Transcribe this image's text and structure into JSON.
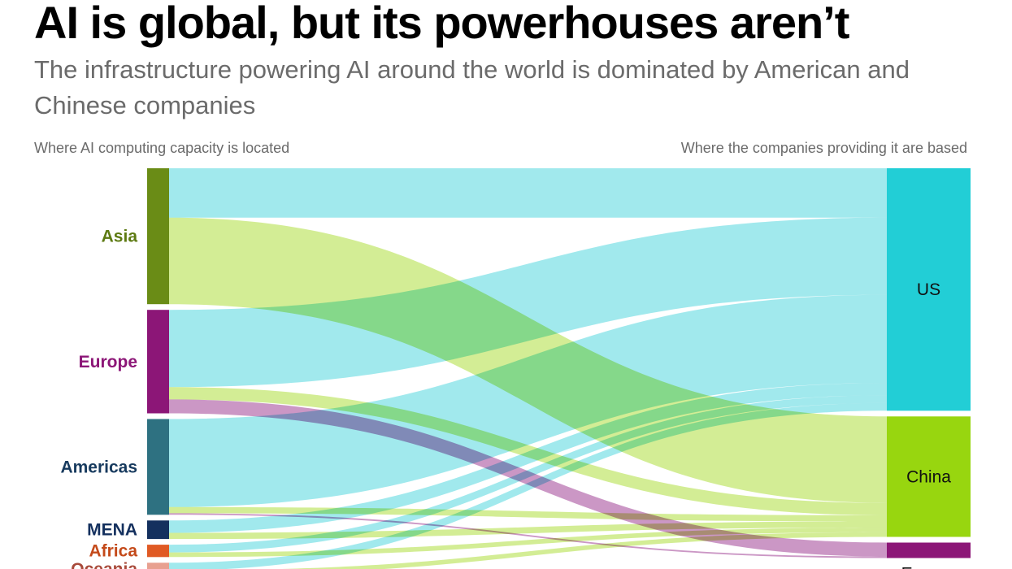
{
  "title": "AI is global, but its powerhouses aren’t",
  "subtitle": "The infrastructure powering AI around the world is dominated by American and Chinese companies",
  "left_axis_label": "Where AI computing capacity is located",
  "right_axis_label": "Where the companies providing it are based",
  "chart_data": {
    "type": "sankey",
    "sources": [
      {
        "name": "Asia",
        "color": "#6a8c16",
        "label_color": "#5d7a12"
      },
      {
        "name": "Europe",
        "color": "#8c1677",
        "label_color": "#8c1677"
      },
      {
        "name": "Americas",
        "color": "#2e7181",
        "label_color": "#173a5e"
      },
      {
        "name": "MENA",
        "color": "#14305e",
        "label_color": "#14305e"
      },
      {
        "name": "Africa",
        "color": "#e05a24",
        "label_color": "#c44a1a"
      },
      {
        "name": "Oceania",
        "color": "#e8a090",
        "label_color": "#a84a3a"
      }
    ],
    "targets": [
      {
        "name": "US",
        "color": "#22ced6",
        "link_color": "#86e3e8"
      },
      {
        "name": "China",
        "color": "#98d60f",
        "link_color": "#c6e877"
      },
      {
        "name": "Europe",
        "color": "#8c1677",
        "link_color": "#bd7ab5"
      }
    ],
    "flows": [
      {
        "source": "Asia",
        "target": "US",
        "value": 32
      },
      {
        "source": "Asia",
        "target": "China",
        "value": 56
      },
      {
        "source": "Europe",
        "target": "US",
        "value": 50
      },
      {
        "source": "Europe",
        "target": "China",
        "value": 8
      },
      {
        "source": "Europe",
        "target": "Europe",
        "value": 9
      },
      {
        "source": "Americas",
        "target": "US",
        "value": 57
      },
      {
        "source": "Americas",
        "target": "China",
        "value": 4
      },
      {
        "source": "Americas",
        "target": "Europe",
        "value": 1
      },
      {
        "source": "MENA",
        "target": "US",
        "value": 8
      },
      {
        "source": "MENA",
        "target": "China",
        "value": 4
      },
      {
        "source": "Africa",
        "target": "US",
        "value": 5
      },
      {
        "source": "Africa",
        "target": "China",
        "value": 3
      },
      {
        "source": "Oceania",
        "target": "US",
        "value": 5
      },
      {
        "source": "Oceania",
        "target": "China",
        "value": 3
      }
    ]
  }
}
